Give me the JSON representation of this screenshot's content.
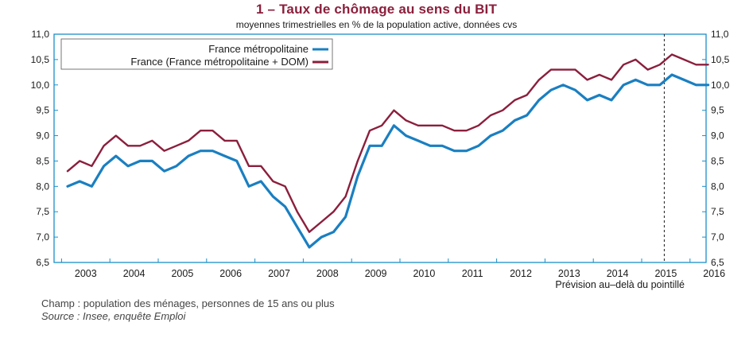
{
  "header": {
    "title": "1 – Taux de chômage au sens du BIT",
    "subtitle": "moyennes trimestrielles en % de la population active, données cvs"
  },
  "footer": {
    "champ": "Champ : population des ménages, personnes de 15 ans ou plus",
    "source": "Source : Insee, enquête Emploi"
  },
  "chart_data": {
    "type": "line",
    "title": "1 – Taux de chômage au sens du BIT",
    "subtitle": "moyennes trimestrielles en % de la population active, données cvs",
    "x_label_years": [
      "2003",
      "2004",
      "2005",
      "2006",
      "2007",
      "2008",
      "2009",
      "2010",
      "2011",
      "2012",
      "2013",
      "2014",
      "2015",
      "2016"
    ],
    "ylim": [
      6.5,
      11.0
    ],
    "yticks": [
      "6,5",
      "7,0",
      "7,5",
      "8,0",
      "8,5",
      "9,0",
      "9,5",
      "10,0",
      "10,5",
      "11,0"
    ],
    "ytick_values": [
      6.5,
      7.0,
      7.5,
      8.0,
      8.5,
      9.0,
      9.5,
      10.0,
      10.5,
      11.0
    ],
    "grid": false,
    "legend_position": "top-left",
    "forecast_note": "Prévision au–delà du pointillé",
    "forecast_after_quarter_index": 49,
    "colors": {
      "axis": "#1a8fc9",
      "metro": "#1a7fc1",
      "france": "#8b1f3c"
    },
    "quarters": [
      "2003T1",
      "2003T2",
      "2003T3",
      "2003T4",
      "2004T1",
      "2004T2",
      "2004T3",
      "2004T4",
      "2005T1",
      "2005T2",
      "2005T3",
      "2005T4",
      "2006T1",
      "2006T2",
      "2006T3",
      "2006T4",
      "2007T1",
      "2007T2",
      "2007T3",
      "2007T4",
      "2008T1",
      "2008T2",
      "2008T3",
      "2008T4",
      "2009T1",
      "2009T2",
      "2009T3",
      "2009T4",
      "2010T1",
      "2010T2",
      "2010T3",
      "2010T4",
      "2011T1",
      "2011T2",
      "2011T3",
      "2011T4",
      "2012T1",
      "2012T2",
      "2012T3",
      "2012T4",
      "2013T1",
      "2013T2",
      "2013T3",
      "2013T4",
      "2014T1",
      "2014T2",
      "2014T3",
      "2014T4",
      "2015T1",
      "2015T2",
      "2015T3",
      "2015T4",
      "2016T1",
      "2016T2"
    ],
    "series": [
      {
        "name": "France métropolitaine",
        "values": [
          8.0,
          8.1,
          8.0,
          8.4,
          8.6,
          8.4,
          8.5,
          8.5,
          8.3,
          8.4,
          8.6,
          8.7,
          8.7,
          8.6,
          8.5,
          8.0,
          8.1,
          7.8,
          7.6,
          7.2,
          6.8,
          7.0,
          7.1,
          7.4,
          8.2,
          8.8,
          8.8,
          9.2,
          9.0,
          8.9,
          8.8,
          8.8,
          8.7,
          8.7,
          8.8,
          9.0,
          9.1,
          9.3,
          9.4,
          9.7,
          9.9,
          10.0,
          9.9,
          9.7,
          9.8,
          9.7,
          10.0,
          10.1,
          10.0,
          10.0,
          10.2,
          10.1,
          10.0,
          10.0
        ]
      },
      {
        "name": "France (France métropolitaine + DOM)",
        "values": [
          8.3,
          8.5,
          8.4,
          8.8,
          9.0,
          8.8,
          8.8,
          8.9,
          8.7,
          8.8,
          8.9,
          9.1,
          9.1,
          8.9,
          8.9,
          8.4,
          8.4,
          8.1,
          8.0,
          7.5,
          7.1,
          7.3,
          7.5,
          7.8,
          8.5,
          9.1,
          9.2,
          9.5,
          9.3,
          9.2,
          9.2,
          9.2,
          9.1,
          9.1,
          9.2,
          9.4,
          9.5,
          9.7,
          9.8,
          10.1,
          10.3,
          10.3,
          10.3,
          10.1,
          10.2,
          10.1,
          10.4,
          10.5,
          10.3,
          10.4,
          10.6,
          10.5,
          10.4,
          10.4
        ]
      }
    ]
  }
}
